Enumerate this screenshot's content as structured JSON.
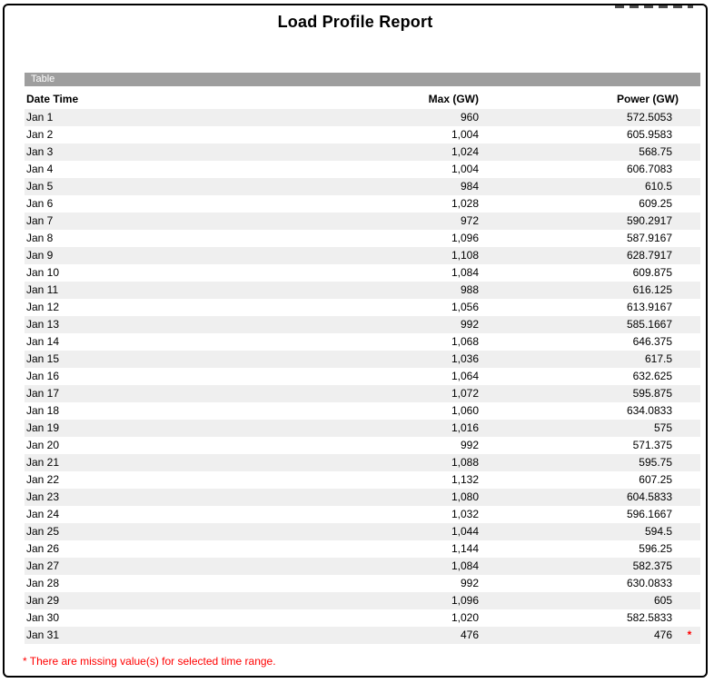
{
  "window": {
    "title": "Load Profile Report"
  },
  "table": {
    "section_label": "Table",
    "columns": {
      "date": "Date Time",
      "max": "Max (GW)",
      "power": "Power (GW)"
    },
    "rows": [
      {
        "date": "Jan 1",
        "max": "960",
        "power": "572.5053",
        "flag": ""
      },
      {
        "date": "Jan 2",
        "max": "1,004",
        "power": "605.9583",
        "flag": ""
      },
      {
        "date": "Jan 3",
        "max": "1,024",
        "power": "568.75",
        "flag": ""
      },
      {
        "date": "Jan 4",
        "max": "1,004",
        "power": "606.7083",
        "flag": ""
      },
      {
        "date": "Jan 5",
        "max": "984",
        "power": "610.5",
        "flag": ""
      },
      {
        "date": "Jan 6",
        "max": "1,028",
        "power": "609.25",
        "flag": ""
      },
      {
        "date": "Jan 7",
        "max": "972",
        "power": "590.2917",
        "flag": ""
      },
      {
        "date": "Jan 8",
        "max": "1,096",
        "power": "587.9167",
        "flag": ""
      },
      {
        "date": "Jan 9",
        "max": "1,108",
        "power": "628.7917",
        "flag": ""
      },
      {
        "date": "Jan 10",
        "max": "1,084",
        "power": "609.875",
        "flag": ""
      },
      {
        "date": "Jan 11",
        "max": "988",
        "power": "616.125",
        "flag": ""
      },
      {
        "date": "Jan 12",
        "max": "1,056",
        "power": "613.9167",
        "flag": ""
      },
      {
        "date": "Jan 13",
        "max": "992",
        "power": "585.1667",
        "flag": ""
      },
      {
        "date": "Jan 14",
        "max": "1,068",
        "power": "646.375",
        "flag": ""
      },
      {
        "date": "Jan 15",
        "max": "1,036",
        "power": "617.5",
        "flag": ""
      },
      {
        "date": "Jan 16",
        "max": "1,064",
        "power": "632.625",
        "flag": ""
      },
      {
        "date": "Jan 17",
        "max": "1,072",
        "power": "595.875",
        "flag": ""
      },
      {
        "date": "Jan 18",
        "max": "1,060",
        "power": "634.0833",
        "flag": ""
      },
      {
        "date": "Jan 19",
        "max": "1,016",
        "power": "575",
        "flag": ""
      },
      {
        "date": "Jan 20",
        "max": "992",
        "power": "571.375",
        "flag": ""
      },
      {
        "date": "Jan 21",
        "max": "1,088",
        "power": "595.75",
        "flag": ""
      },
      {
        "date": "Jan 22",
        "max": "1,132",
        "power": "607.25",
        "flag": ""
      },
      {
        "date": "Jan 23",
        "max": "1,080",
        "power": "604.5833",
        "flag": ""
      },
      {
        "date": "Jan 24",
        "max": "1,032",
        "power": "596.1667",
        "flag": ""
      },
      {
        "date": "Jan 25",
        "max": "1,044",
        "power": "594.5",
        "flag": ""
      },
      {
        "date": "Jan 26",
        "max": "1,144",
        "power": "596.25",
        "flag": ""
      },
      {
        "date": "Jan 27",
        "max": "1,084",
        "power": "582.375",
        "flag": ""
      },
      {
        "date": "Jan 28",
        "max": "992",
        "power": "630.0833",
        "flag": ""
      },
      {
        "date": "Jan 29",
        "max": "1,096",
        "power": "605",
        "flag": ""
      },
      {
        "date": "Jan 30",
        "max": "1,020",
        "power": "582.5833",
        "flag": ""
      },
      {
        "date": "Jan 31",
        "max": "476",
        "power": "476",
        "flag": "*"
      }
    ],
    "footnote": "* There are missing value(s) for selected time range."
  },
  "colors": {
    "section_bar_gray": "#9e9e9e",
    "row_stripe_gray": "#efefef",
    "footnote_red": "#ff0000",
    "missing_flag_red": "#ff0000"
  }
}
